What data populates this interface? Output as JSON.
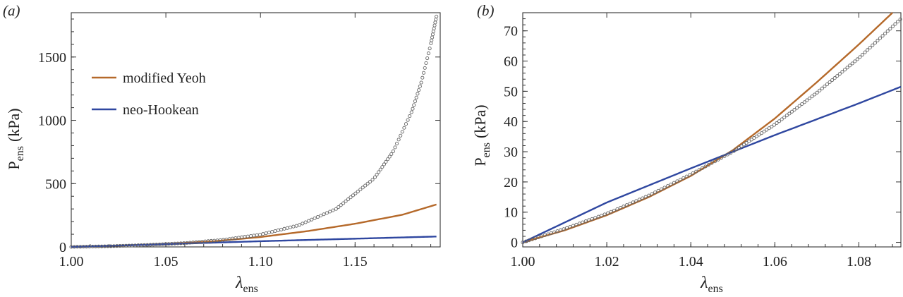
{
  "chart_data": [
    {
      "panel_label": "(a)",
      "type": "line",
      "xlabel": {
        "main": "λ",
        "sub": "ens"
      },
      "ylabel": {
        "main": "P",
        "sub": "ens",
        "tail": "(kPa)"
      },
      "xlim": [
        1.0,
        1.195
      ],
      "ylim": [
        0,
        1850
      ],
      "xticks": [
        1.0,
        1.05,
        1.1,
        1.15
      ],
      "xtick_labels": [
        "1.00",
        "1.05",
        "1.10",
        "1.15"
      ],
      "yticks": [
        0,
        500,
        1000,
        1500
      ],
      "ytick_labels": [
        "0",
        "500",
        "1000",
        "1500"
      ],
      "legend": {
        "placement": "upper-left"
      },
      "series": [
        {
          "name": "modified Yeoh",
          "kind": "line",
          "color": "#b5692a",
          "x": [
            1.0,
            1.025,
            1.05,
            1.075,
            1.1,
            1.125,
            1.15,
            1.175,
            1.193
          ],
          "y": [
            0,
            10,
            23,
            44,
            78,
            125,
            183,
            254,
            335
          ]
        },
        {
          "name": "neo-Hookean",
          "kind": "line",
          "color": "#2f47a0",
          "x": [
            1.0,
            1.05,
            1.1,
            1.15,
            1.193
          ],
          "y": [
            0,
            22,
            45,
            65,
            82
          ]
        },
        {
          "name": "",
          "kind": "markers",
          "color": "#666666",
          "x": [
            1.0,
            1.02,
            1.04,
            1.06,
            1.08,
            1.1,
            1.12,
            1.14,
            1.16,
            1.17,
            1.18,
            1.185,
            1.19,
            1.193
          ],
          "y": [
            0,
            5,
            15,
            30,
            55,
            97,
            170,
            300,
            540,
            750,
            1070,
            1300,
            1600,
            1820
          ]
        }
      ]
    },
    {
      "panel_label": "(b)",
      "type": "line",
      "xlabel": {
        "main": "λ",
        "sub": "ens"
      },
      "ylabel": {
        "main": "P",
        "sub": "ens",
        "tail": "(kPa)"
      },
      "xlim": [
        1.0,
        1.09
      ],
      "ylim": [
        -1.5,
        76
      ],
      "xticks": [
        1.0,
        1.02,
        1.04,
        1.06,
        1.08
      ],
      "xtick_labels": [
        "1.00",
        "1.02",
        "1.04",
        "1.06",
        "1.08"
      ],
      "yticks": [
        0,
        10,
        20,
        30,
        40,
        50,
        60,
        70
      ],
      "ytick_labels": [
        "0",
        "10",
        "20",
        "30",
        "40",
        "50",
        "60",
        "70"
      ],
      "series": [
        {
          "name": "modified Yeoh",
          "kind": "line",
          "color": "#b5692a",
          "x": [
            1.0,
            1.01,
            1.02,
            1.03,
            1.04,
            1.05,
            1.06,
            1.07,
            1.08,
            1.088
          ],
          "y": [
            0,
            4,
            9,
            15,
            22,
            30.5,
            41,
            53,
            65.5,
            76
          ]
        },
        {
          "name": "neo-Hookean",
          "kind": "line",
          "color": "#2f47a0",
          "x": [
            1.0,
            1.02,
            1.04,
            1.06,
            1.08,
            1.09
          ],
          "y": [
            0,
            13.2,
            24.5,
            35.5,
            46,
            51.5
          ]
        },
        {
          "name": "",
          "kind": "markers",
          "color": "#666666",
          "x": [
            1.0,
            1.01,
            1.02,
            1.03,
            1.04,
            1.05,
            1.06,
            1.07,
            1.08,
            1.09
          ],
          "y": [
            0,
            4.5,
            9.5,
            15.5,
            22.5,
            30,
            39,
            49.5,
            61,
            74
          ]
        }
      ]
    }
  ]
}
